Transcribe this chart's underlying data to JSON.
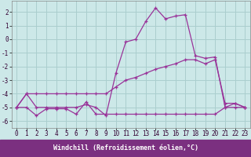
{
  "xlabel": "Windchill (Refroidissement éolien,°C)",
  "bg_color": "#cce8e8",
  "line_color": "#993399",
  "grid_color": "#aacece",
  "xlabel_bg": "#7b3080",
  "xlabel_fg": "#ffffff",
  "x_values": [
    0,
    1,
    2,
    3,
    4,
    5,
    6,
    7,
    8,
    9,
    10,
    11,
    12,
    13,
    14,
    15,
    16,
    17,
    18,
    19,
    20,
    21,
    22,
    23
  ],
  "line1": [
    -5.0,
    -5.0,
    -5.6,
    -5.1,
    -5.1,
    -5.1,
    -5.5,
    -4.6,
    -5.5,
    -5.5,
    -5.5,
    -5.5,
    -5.5,
    -5.5,
    -5.5,
    -5.5,
    -5.5,
    -5.5,
    -5.5,
    -5.5,
    -5.5,
    -5.0,
    -5.0,
    -5.0
  ],
  "line2": [
    -5.0,
    -4.0,
    -5.0,
    -5.0,
    -5.0,
    -5.0,
    -5.0,
    -4.8,
    -5.0,
    -5.6,
    -2.5,
    -0.2,
    0.0,
    1.3,
    2.3,
    1.5,
    1.7,
    1.8,
    -1.2,
    -1.4,
    -1.3,
    -5.0,
    -4.7,
    -5.0
  ],
  "line3": [
    -5.0,
    -4.0,
    -4.0,
    -4.0,
    -4.0,
    -4.0,
    -4.0,
    -4.0,
    -4.0,
    -4.0,
    -3.5,
    -3.0,
    -2.8,
    -2.5,
    -2.2,
    -2.0,
    -1.8,
    -1.5,
    -1.5,
    -1.8,
    -1.5,
    -4.7,
    -4.7,
    -5.0
  ],
  "ylim": [
    -6.5,
    2.8
  ],
  "xlim": [
    -0.5,
    23.5
  ],
  "yticks": [
    -6,
    -5,
    -4,
    -3,
    -2,
    -1,
    0,
    1,
    2
  ],
  "xticks": [
    0,
    1,
    2,
    3,
    4,
    5,
    6,
    7,
    8,
    9,
    10,
    11,
    12,
    13,
    14,
    15,
    16,
    17,
    18,
    19,
    20,
    21,
    22,
    23
  ],
  "fontsize_tick": 5.5,
  "fontsize_xlabel": 6.0
}
